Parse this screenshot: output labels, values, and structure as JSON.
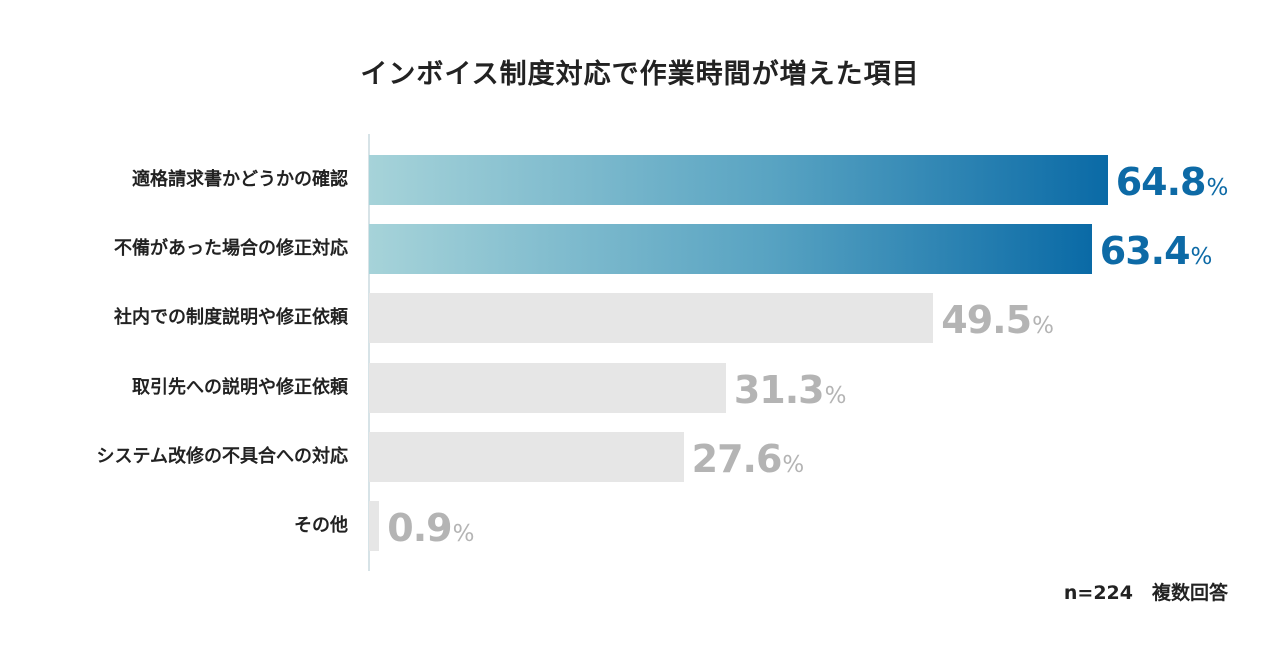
{
  "chart_data": {
    "type": "bar",
    "orientation": "horizontal",
    "title": "インボイス制度対応で作業時間が増えた項目",
    "categories": [
      "適格請求書かどうかの確認",
      "不備があった場合の修正対応",
      "社内での制度説明や修正依頼",
      "取引先への説明や修正依頼",
      "システム改修の不具合への対応",
      "その他"
    ],
    "values": [
      64.8,
      63.4,
      49.5,
      31.3,
      27.6,
      0.9
    ],
    "highlighted": [
      true,
      true,
      false,
      false,
      false,
      false
    ],
    "value_unit": "%",
    "xlim": [
      0,
      100
    ],
    "xlabel": "",
    "ylabel": "",
    "grid": false,
    "note": "n=224　複数回答"
  },
  "colors": {
    "highlight_start": "#a6d3d9",
    "highlight_end": "#0a6aa6",
    "highlight_text": "#0d6aa6",
    "normal_bar": "#e6e6e6",
    "normal_text": "#b4b4b4"
  }
}
